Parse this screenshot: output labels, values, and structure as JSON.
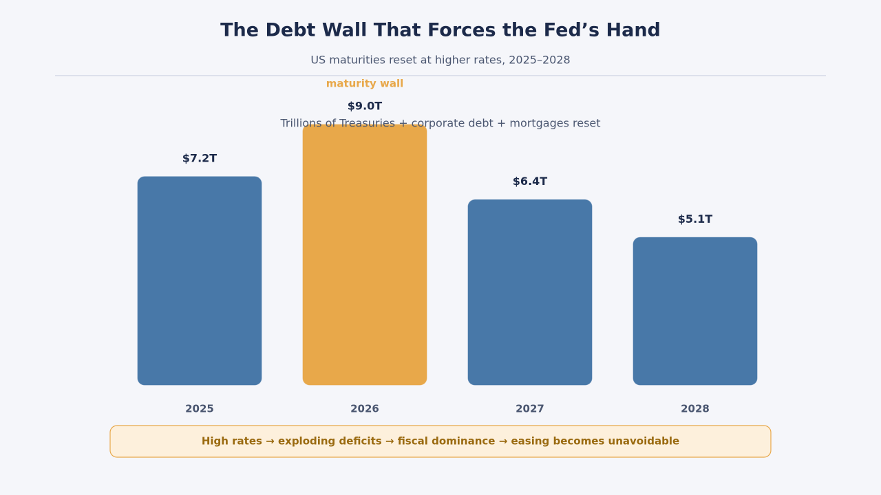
{
  "chart_data": {
    "type": "bar",
    "title": "The Debt Wall That Forces the Fed’s Hand",
    "subtitle": "US maturities reset at higher rates, 2025–2028",
    "categories": [
      "2025",
      "2026",
      "2027",
      "2028"
    ],
    "values": [
      7.2,
      9.0,
      6.4,
      5.1
    ],
    "value_labels": [
      "$7.2T",
      "$9.0T",
      "$6.4T",
      "$5.1T"
    ],
    "colors": [
      "#4878a8",
      "#e8a84a",
      "#4878a8",
      "#4878a8"
    ],
    "annotations": [
      "maturity wall",
      "Trillions of Treasuries + corporate debt + mortgages reset"
    ],
    "callout": "High rates → exploding deficits → fiscal dominance → easing becomes unavoidable"
  }
}
